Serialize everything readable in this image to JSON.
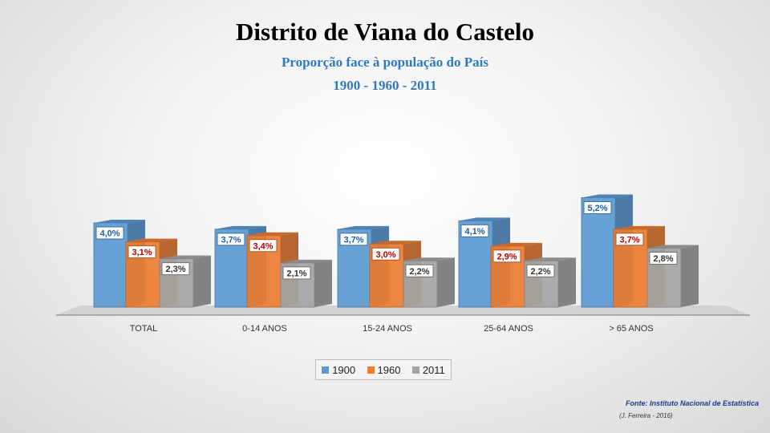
{
  "slide": {
    "title": "Distrito de Viana do Castelo",
    "subtitle": "Proporção face à população do País",
    "years": "1900 - 1960 - 2011",
    "source": "Fonte: Instituto Nacional de Estatística",
    "credit": "(J. Ferreira - 2016)"
  },
  "colors": {
    "1900": "#5b9bd5",
    "1960": "#ed7d31",
    "2011": "#a5a5a5",
    "label_1900": "#1f5fb0",
    "label_1960": "#c00000",
    "label_2011": "#333333"
  },
  "chart_data": {
    "type": "bar",
    "title": "Distrito de Viana do Castelo",
    "subtitle": "Proporção face à população do País",
    "categories": [
      "TOTAL",
      "0-14 ANOS",
      "15-24 ANOS",
      "25-64 ANOS",
      "> 65 ANOS"
    ],
    "series": [
      {
        "name": "1900",
        "values": [
          4.0,
          3.7,
          3.7,
          4.1,
          5.2
        ],
        "labels": [
          "4,0%",
          "3,7%",
          "3,7%",
          "4,1%",
          "5,2%"
        ]
      },
      {
        "name": "1960",
        "values": [
          3.1,
          3.4,
          3.0,
          2.9,
          3.7
        ],
        "labels": [
          "3,1%",
          "3,4%",
          "3,0%",
          "2,9%",
          "3,7%"
        ]
      },
      {
        "name": "2011",
        "values": [
          2.3,
          2.1,
          2.2,
          2.2,
          2.8
        ],
        "labels": [
          "2,3%",
          "2,1%",
          "2,2%",
          "2,2%",
          "2,8%"
        ]
      }
    ],
    "legend": [
      "1900",
      "1960",
      "2011"
    ],
    "legend_position": "bottom",
    "ylim": [
      0,
      5.8
    ],
    "grid": false
  }
}
